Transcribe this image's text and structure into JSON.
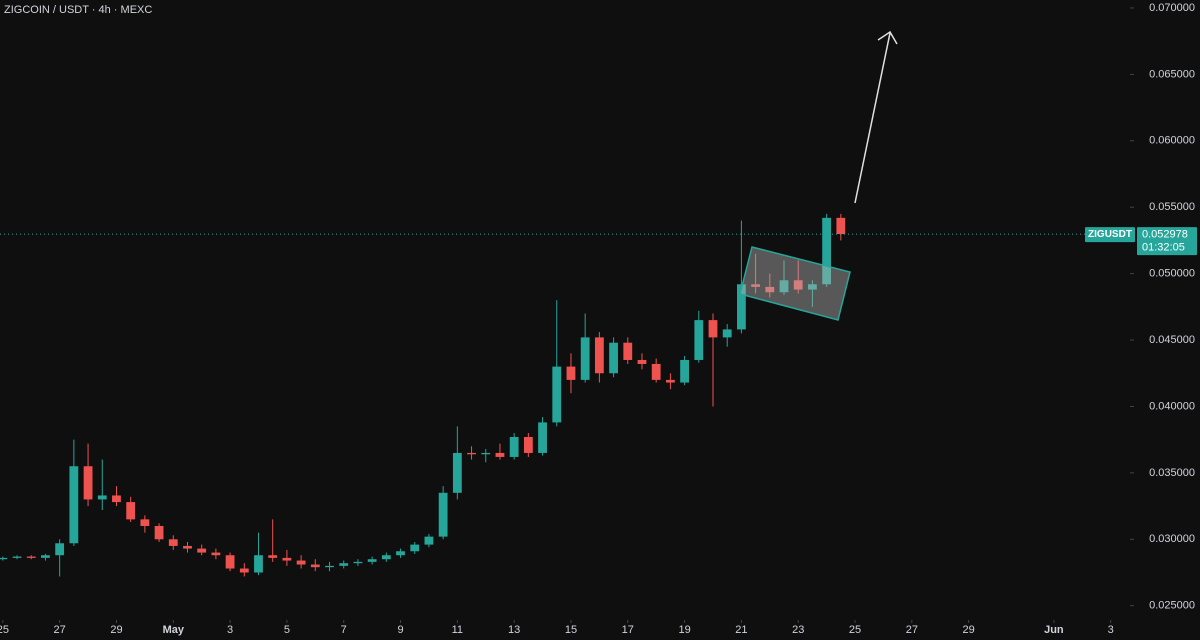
{
  "chart_data": {
    "type": "candlestick",
    "title": "ZIGCOIN / USDT · 4h · MEXC",
    "symbol": "ZIGUSDT",
    "countdown": "01:32:05",
    "up_color": "#26a69a",
    "down_color": "#ef5350",
    "x": [
      0,
      0.5,
      1,
      1.5,
      2,
      2.5,
      3,
      3.5,
      4,
      4.5,
      5,
      5.5,
      6,
      6.5,
      7,
      7.5,
      8,
      8.5,
      9,
      9.5,
      10,
      10.5,
      11,
      11.5,
      12,
      12.5,
      13,
      13.5,
      14,
      14.5,
      15,
      15.5,
      16,
      16.5,
      17,
      17.5,
      18,
      18.5,
      19,
      19.5,
      20,
      20.5,
      21,
      21.5,
      22,
      22.5,
      23,
      23.5,
      24,
      24.5,
      25,
      25.5,
      26,
      26.5,
      27,
      27.5,
      28,
      28.5,
      29,
      29.5
    ],
    "open": [
      0.0285,
      0.0286,
      0.0287,
      0.0286,
      0.0288,
      0.0297,
      0.0355,
      0.033,
      0.0333,
      0.0328,
      0.0315,
      0.031,
      0.03,
      0.0295,
      0.0293,
      0.029,
      0.0288,
      0.0278,
      0.0275,
      0.0288,
      0.0286,
      0.0284,
      0.0281,
      0.0279,
      0.028,
      0.0282,
      0.0283,
      0.0285,
      0.0288,
      0.0291,
      0.0296,
      0.0302,
      0.0335,
      0.0365,
      0.0364,
      0.0365,
      0.0362,
      0.0377,
      0.0365,
      0.0388,
      0.043,
      0.042,
      0.0452,
      0.0425,
      0.0448,
      0.0435,
      0.0432,
      0.042,
      0.0418,
      0.0435,
      0.0465,
      0.0452,
      0.0458,
      0.0492,
      0.049,
      0.0486,
      0.0495,
      0.0488,
      0.0492,
      0.0542
    ],
    "high": [
      0.0287,
      0.0288,
      0.0288,
      0.0289,
      0.03,
      0.0375,
      0.0372,
      0.036,
      0.034,
      0.0332,
      0.0318,
      0.0312,
      0.0303,
      0.0298,
      0.0296,
      0.0293,
      0.029,
      0.0282,
      0.0305,
      0.0315,
      0.0292,
      0.0288,
      0.0285,
      0.0283,
      0.0284,
      0.0285,
      0.0287,
      0.029,
      0.0293,
      0.0298,
      0.0304,
      0.034,
      0.0385,
      0.037,
      0.0368,
      0.0372,
      0.038,
      0.038,
      0.0392,
      0.048,
      0.044,
      0.047,
      0.0456,
      0.0452,
      0.0452,
      0.044,
      0.0436,
      0.0425,
      0.0438,
      0.0472,
      0.047,
      0.0462,
      0.054,
      0.0515,
      0.05,
      0.051,
      0.051,
      0.0495,
      0.0545,
      0.0545
    ],
    "low": [
      0.0284,
      0.0285,
      0.0285,
      0.0284,
      0.0272,
      0.0295,
      0.0325,
      0.0322,
      0.0325,
      0.0313,
      0.0305,
      0.0298,
      0.0292,
      0.029,
      0.0288,
      0.0285,
      0.0276,
      0.0272,
      0.0273,
      0.0283,
      0.028,
      0.0278,
      0.0276,
      0.0276,
      0.0278,
      0.028,
      0.0281,
      0.0283,
      0.0286,
      0.0289,
      0.0294,
      0.03,
      0.033,
      0.036,
      0.0358,
      0.036,
      0.036,
      0.0362,
      0.0363,
      0.0385,
      0.041,
      0.0418,
      0.0418,
      0.0422,
      0.0432,
      0.0428,
      0.0418,
      0.0413,
      0.0416,
      0.0433,
      0.04,
      0.0445,
      0.0455,
      0.0485,
      0.0482,
      0.0484,
      0.0485,
      0.0475,
      0.049,
      0.0525
    ],
    "close": [
      0.0286,
      0.0287,
      0.0286,
      0.0288,
      0.0297,
      0.0355,
      0.033,
      0.0333,
      0.0328,
      0.0315,
      0.031,
      0.03,
      0.0295,
      0.0293,
      0.029,
      0.0288,
      0.0278,
      0.0275,
      0.0288,
      0.0286,
      0.0284,
      0.0281,
      0.0279,
      0.028,
      0.0282,
      0.0283,
      0.0285,
      0.0288,
      0.0291,
      0.0296,
      0.0302,
      0.0335,
      0.0365,
      0.0364,
      0.0365,
      0.0362,
      0.0377,
      0.0365,
      0.0388,
      0.043,
      0.042,
      0.0452,
      0.0425,
      0.0448,
      0.0435,
      0.0432,
      0.042,
      0.0418,
      0.0435,
      0.0465,
      0.0452,
      0.0458,
      0.0492,
      0.049,
      0.0486,
      0.0495,
      0.0488,
      0.0492,
      0.0542,
      0.052978
    ],
    "xlim": [
      -0.1,
      39.68
    ],
    "xticks": [
      {
        "value": 0,
        "label": "25"
      },
      {
        "value": 2,
        "label": "27"
      },
      {
        "value": 4,
        "label": "29"
      },
      {
        "value": 6,
        "label": "May"
      },
      {
        "value": 8,
        "label": "3"
      },
      {
        "value": 10,
        "label": "5"
      },
      {
        "value": 12,
        "label": "7"
      },
      {
        "value": 14,
        "label": "9"
      },
      {
        "value": 16,
        "label": "11"
      },
      {
        "value": 18,
        "label": "13"
      },
      {
        "value": 20,
        "label": "15"
      },
      {
        "value": 22,
        "label": "17"
      },
      {
        "value": 24,
        "label": "19"
      },
      {
        "value": 26,
        "label": "21"
      },
      {
        "value": 28,
        "label": "23"
      },
      {
        "value": 30,
        "label": "25"
      },
      {
        "value": 32,
        "label": "27"
      },
      {
        "value": 34,
        "label": "29"
      },
      {
        "value": 37,
        "label": "Jun"
      },
      {
        "value": 39,
        "label": "3"
      }
    ],
    "ylim": [
      0.0243,
      0.0706
    ],
    "yticks": [
      {
        "value": 0.025,
        "label": "0.025000"
      },
      {
        "value": 0.03,
        "label": "0.030000"
      },
      {
        "value": 0.035,
        "label": "0.035000"
      },
      {
        "value": 0.04,
        "label": "0.040000"
      },
      {
        "value": 0.045,
        "label": "0.045000"
      },
      {
        "value": 0.05,
        "label": "0.050000"
      },
      {
        "value": 0.055,
        "label": "0.055000"
      },
      {
        "value": 0.06,
        "label": "0.060000"
      },
      {
        "value": 0.065,
        "label": "0.065000"
      },
      {
        "value": 0.07,
        "label": "0.070000"
      }
    ]
  }
}
